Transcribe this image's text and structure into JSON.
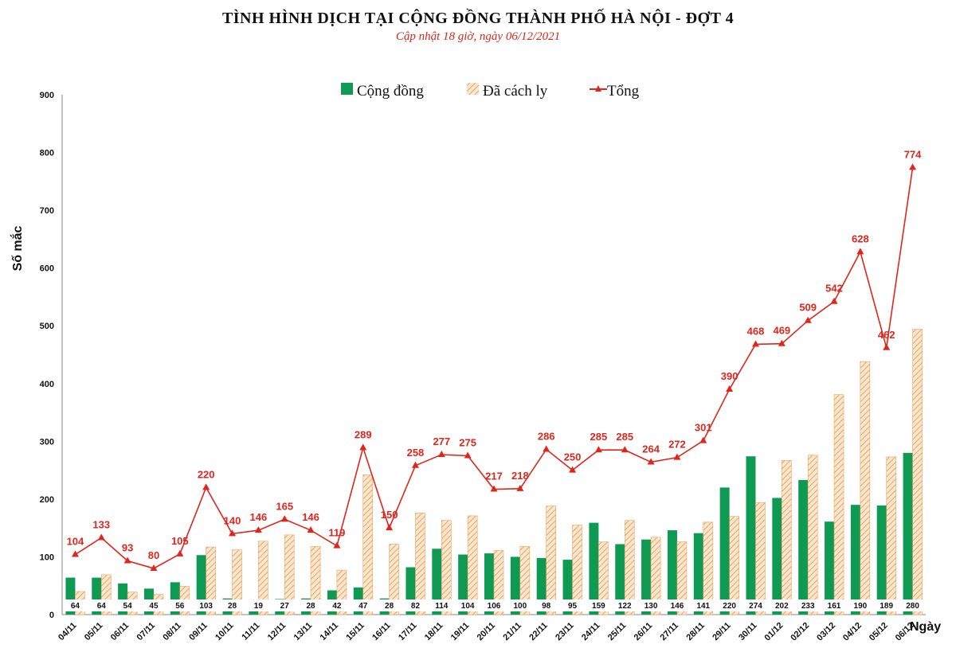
{
  "header": {
    "title": "TÌNH HÌNH DỊCH TẠI CỘNG ĐỒNG THÀNH PHỐ HÀ NỘI - ĐỢT 4",
    "subtitle": "Cập nhật 18 giờ, ngày 06/12/2021"
  },
  "colors": {
    "community": "#0e9a52",
    "quarantine_stripe": "#e8a460",
    "quarantine_bg": "#fbe7cf",
    "total": "#e0261c"
  },
  "chart_data": {
    "type": "bar",
    "title": "TÌNH HÌNH DỊCH TẠI CỘNG ĐỒNG THÀNH PHỐ HÀ NỘI - ĐỢT 4",
    "subtitle": "Cập nhật 18 giờ, ngày 06/12/2021",
    "xlabel": "Ngày",
    "ylabel": "Số mắc",
    "ylim": [
      0,
      900
    ],
    "yticks": [
      0,
      100,
      200,
      300,
      400,
      500,
      600,
      700,
      800,
      900
    ],
    "grid": false,
    "legend_position": "top-center",
    "categories": [
      "04/11",
      "05/11",
      "06/11",
      "07/11",
      "08/11",
      "09/11",
      "10/11",
      "11/11",
      "12/11",
      "13/11",
      "14/11",
      "15/11",
      "16/11",
      "17/11",
      "18/11",
      "19/11",
      "20/11",
      "21/11",
      "22/11",
      "23/11",
      "24/11",
      "25/11",
      "26/11",
      "27/11",
      "28/11",
      "29/11",
      "30/11",
      "01/12",
      "02/12",
      "03/12",
      "04/12",
      "05/12",
      "06/12"
    ],
    "series": [
      {
        "name": "Cộng đồng",
        "kind": "bar",
        "values": [
          64,
          64,
          54,
          45,
          56,
          103,
          28,
          19,
          27,
          28,
          42,
          47,
          28,
          82,
          114,
          104,
          106,
          100,
          98,
          95,
          159,
          122,
          130,
          146,
          141,
          220,
          274,
          202,
          233,
          161,
          190,
          189,
          280
        ]
      },
      {
        "name": "Đã cách ly",
        "kind": "bar-hatched",
        "values": [
          40,
          69,
          39,
          35,
          49,
          117,
          112,
          127,
          138,
          118,
          77,
          242,
          122,
          176,
          163,
          171,
          111,
          118,
          188,
          155,
          126,
          163,
          134,
          126,
          160,
          170,
          194,
          267,
          276,
          381,
          438,
          273,
          494
        ]
      },
      {
        "name": "Tổng",
        "kind": "line",
        "values": [
          104,
          133,
          93,
          80,
          105,
          220,
          140,
          146,
          165,
          146,
          119,
          289,
          150,
          258,
          277,
          275,
          217,
          218,
          286,
          250,
          285,
          285,
          264,
          272,
          301,
          390,
          468,
          469,
          509,
          542,
          628,
          462,
          774
        ]
      }
    ]
  }
}
